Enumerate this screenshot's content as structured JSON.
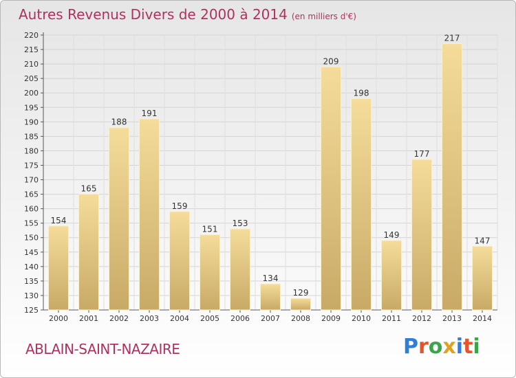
{
  "chart_data": {
    "type": "bar",
    "title": "Autres Revenus Divers de 2000 à 2014",
    "subtitle": "(en milliers d'€)",
    "categories": [
      "2000",
      "2001",
      "2002",
      "2003",
      "2004",
      "2005",
      "2006",
      "2007",
      "2008",
      "2009",
      "2010",
      "2011",
      "2012",
      "2013",
      "2014"
    ],
    "values": [
      154,
      165,
      188,
      191,
      159,
      151,
      153,
      134,
      129,
      209,
      198,
      149,
      177,
      217,
      147
    ],
    "ylim": [
      125,
      220
    ],
    "yticks": [
      125,
      130,
      135,
      140,
      145,
      150,
      155,
      160,
      165,
      170,
      175,
      180,
      185,
      190,
      195,
      200,
      205,
      210,
      215,
      220
    ],
    "grid": true,
    "bar_color": "#e8c878"
  },
  "footer": {
    "location": "ABLAIN-SAINT-NAZAIRE",
    "logo_text": "Proxiti"
  }
}
